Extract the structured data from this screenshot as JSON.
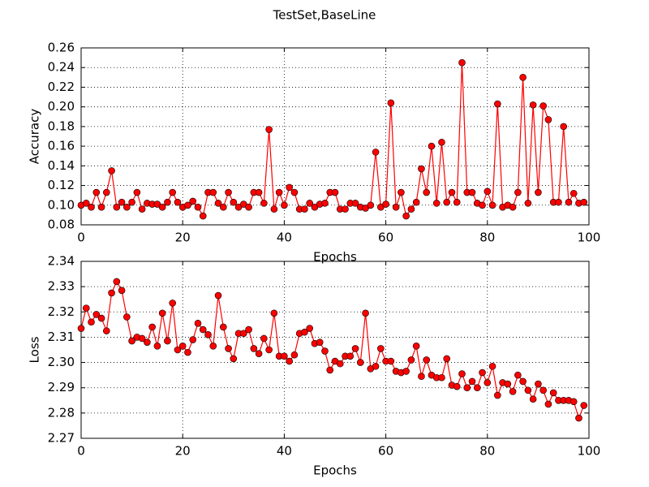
{
  "title": "TestSet,BaseLine",
  "chart_data": [
    {
      "type": "line",
      "xlabel": "Epochs",
      "ylabel": "Accuracy",
      "color": "#ff0000",
      "marker": "circle",
      "grid": true,
      "x": [
        0,
        1,
        2,
        3,
        4,
        5,
        6,
        7,
        8,
        9,
        10,
        11,
        12,
        13,
        14,
        15,
        16,
        17,
        18,
        19,
        20,
        21,
        22,
        23,
        24,
        25,
        26,
        27,
        28,
        29,
        30,
        31,
        32,
        33,
        34,
        35,
        36,
        37,
        38,
        39,
        40,
        41,
        42,
        43,
        44,
        45,
        46,
        47,
        48,
        49,
        50,
        51,
        52,
        53,
        54,
        55,
        56,
        57,
        58,
        59,
        60,
        61,
        62,
        63,
        64,
        65,
        66,
        67,
        68,
        69,
        70,
        71,
        72,
        73,
        74,
        75,
        76,
        77,
        78,
        79,
        80,
        81,
        82,
        83,
        84,
        85,
        86,
        87,
        88,
        89,
        90,
        91,
        92,
        93,
        94,
        95,
        96,
        97,
        98,
        99
      ],
      "values": [
        0.1,
        0.102,
        0.098,
        0.113,
        0.098,
        0.113,
        0.135,
        0.098,
        0.103,
        0.098,
        0.103,
        0.113,
        0.096,
        0.102,
        0.101,
        0.101,
        0.098,
        0.103,
        0.113,
        0.103,
        0.098,
        0.1,
        0.104,
        0.098,
        0.089,
        0.113,
        0.113,
        0.102,
        0.098,
        0.113,
        0.103,
        0.098,
        0.101,
        0.098,
        0.113,
        0.113,
        0.102,
        0.177,
        0.096,
        0.113,
        0.1,
        0.118,
        0.113,
        0.096,
        0.096,
        0.102,
        0.098,
        0.101,
        0.102,
        0.113,
        0.113,
        0.096,
        0.096,
        0.102,
        0.102,
        0.098,
        0.097,
        0.1,
        0.154,
        0.098,
        0.101,
        0.204,
        0.098,
        0.113,
        0.089,
        0.096,
        0.103,
        0.137,
        0.113,
        0.16,
        0.102,
        0.164,
        0.103,
        0.113,
        0.103,
        0.245,
        0.113,
        0.113,
        0.102,
        0.1,
        0.114,
        0.1,
        0.203,
        0.098,
        0.1,
        0.098,
        0.113,
        0.23,
        0.102,
        0.202,
        0.113,
        0.201,
        0.187,
        0.103,
        0.103,
        0.18,
        0.103,
        0.112,
        0.102,
        0.103
      ],
      "xlim": [
        0,
        100
      ],
      "xticks": [
        0,
        20,
        40,
        60,
        80,
        100
      ],
      "ylim": [
        0.08,
        0.26
      ],
      "yticks": [
        {
          "value": 0.08,
          "label": "0.08"
        },
        {
          "value": 0.1,
          "label": "0.10"
        },
        {
          "value": 0.12,
          "label": "0.12"
        },
        {
          "value": 0.14,
          "label": "0.14"
        },
        {
          "value": 0.16,
          "label": "0.16"
        },
        {
          "value": 0.18,
          "label": "0.18"
        },
        {
          "value": 0.2,
          "label": "0.20"
        },
        {
          "value": 0.22,
          "label": "0.22"
        },
        {
          "value": 0.24,
          "label": "0.24"
        },
        {
          "value": 0.26,
          "label": "0.26"
        }
      ]
    },
    {
      "type": "line",
      "xlabel": "Epochs",
      "ylabel": "Loss",
      "color": "#ff0000",
      "marker": "circle",
      "grid": true,
      "x": [
        0,
        1,
        2,
        3,
        4,
        5,
        6,
        7,
        8,
        9,
        10,
        11,
        12,
        13,
        14,
        15,
        16,
        17,
        18,
        19,
        20,
        21,
        22,
        23,
        24,
        25,
        26,
        27,
        28,
        29,
        30,
        31,
        32,
        33,
        34,
        35,
        36,
        37,
        38,
        39,
        40,
        41,
        42,
        43,
        44,
        45,
        46,
        47,
        48,
        49,
        50,
        51,
        52,
        53,
        54,
        55,
        56,
        57,
        58,
        59,
        60,
        61,
        62,
        63,
        64,
        65,
        66,
        67,
        68,
        69,
        70,
        71,
        72,
        73,
        74,
        75,
        76,
        77,
        78,
        79,
        80,
        81,
        82,
        83,
        84,
        85,
        86,
        87,
        88,
        89,
        90,
        91,
        92,
        93,
        94,
        95,
        96,
        97,
        98,
        99
      ],
      "values": [
        2.3135,
        2.3215,
        2.316,
        2.319,
        2.3175,
        2.3125,
        2.3275,
        2.332,
        2.3285,
        2.318,
        2.3085,
        2.31,
        2.3095,
        2.308,
        2.314,
        2.3065,
        2.3195,
        2.3085,
        2.3235,
        2.305,
        2.3065,
        2.304,
        2.309,
        2.3155,
        2.313,
        2.311,
        2.3065,
        2.3265,
        2.314,
        2.3055,
        2.3015,
        2.3115,
        2.3115,
        2.313,
        2.3055,
        2.3035,
        2.3095,
        2.305,
        2.3195,
        2.3025,
        2.3025,
        2.3005,
        2.303,
        2.3115,
        2.312,
        2.3135,
        2.3075,
        2.308,
        2.3045,
        2.297,
        2.3005,
        2.2995,
        2.3025,
        2.3025,
        2.3055,
        2.3,
        2.3195,
        2.2975,
        2.2985,
        2.3055,
        2.3005,
        2.3005,
        2.2965,
        2.296,
        2.2965,
        2.301,
        2.3065,
        2.2945,
        2.301,
        2.295,
        2.294,
        2.294,
        2.3015,
        2.291,
        2.2905,
        2.2955,
        2.29,
        2.2925,
        2.29,
        2.296,
        2.292,
        2.2985,
        2.287,
        2.292,
        2.2915,
        2.2885,
        2.295,
        2.2925,
        2.289,
        2.2855,
        2.2915,
        2.289,
        2.2835,
        2.288,
        2.285,
        2.285,
        2.285,
        2.2845,
        2.278,
        2.283
      ],
      "xlim": [
        0,
        100
      ],
      "xticks": [
        0,
        20,
        40,
        60,
        80,
        100
      ],
      "ylim": [
        2.27,
        2.34
      ],
      "yticks": [
        {
          "value": 2.27,
          "label": "2.27"
        },
        {
          "value": 2.28,
          "label": "2.28"
        },
        {
          "value": 2.29,
          "label": "2.29"
        },
        {
          "value": 2.3,
          "label": "2.30"
        },
        {
          "value": 2.31,
          "label": "2.31"
        },
        {
          "value": 2.32,
          "label": "2.32"
        },
        {
          "value": 2.33,
          "label": "2.33"
        },
        {
          "value": 2.34,
          "label": "2.34"
        }
      ]
    }
  ]
}
